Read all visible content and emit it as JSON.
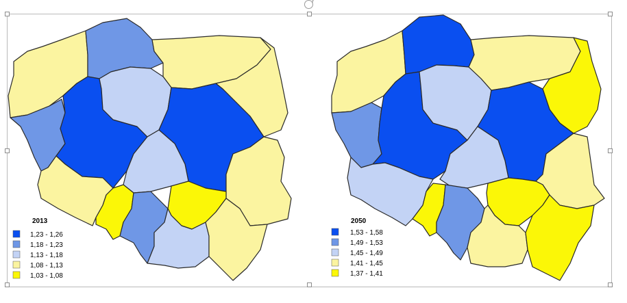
{
  "palette": {
    "dark_blue": "#0a4ff0",
    "mid_blue": "#6f97e6",
    "light_blue": "#c3d3f5",
    "light_yellow": "#fbf4a0",
    "yellow": "#fbf707",
    "border": "#2a2a2a"
  },
  "maps": [
    {
      "legend_title": "2013",
      "legend": [
        {
          "label": "1,23 - 1,26",
          "color": "#0a4ff0"
        },
        {
          "label": "1,18 - 1,23",
          "color": "#6f97e6"
        },
        {
          "label": "1,13 - 1,18",
          "color": "#c3d3f5"
        },
        {
          "label": "1,08 - 1,13",
          "color": "#fbf4a0"
        },
        {
          "label": "1,03 - 1,08",
          "color": "#fbf707"
        }
      ],
      "regions": {
        "zachodniopomorskie": "#fbf4a0",
        "pomorskie": "#6f97e6",
        "warminsko_mazurskie": "#fbf4a0",
        "podlaskie": "#fbf4a0",
        "lubuskie": "#6f97e6",
        "wielkopolskie": "#0a4ff0",
        "kujawsko_pomorskie": "#c3d3f5",
        "mazowieckie": "#0a4ff0",
        "lodzkie": "#c3d3f5",
        "lubelskie": "#fbf4a0",
        "dolnoslaskie": "#fbf4a0",
        "opolskie": "#fbf707",
        "slaskie": "#6f97e6",
        "swietokrzyskie": "#fbf707",
        "malopolskie": "#c3d3f5",
        "podkarpackie": "#fbf4a0"
      }
    },
    {
      "legend_title": "2050",
      "legend": [
        {
          "label": "1,53 - 1,58",
          "color": "#0a4ff0"
        },
        {
          "label": "1,49 - 1,53",
          "color": "#6f97e6"
        },
        {
          "label": "1,45 - 1,49",
          "color": "#c3d3f5"
        },
        {
          "label": "1,41 - 1,45",
          "color": "#fbf4a0"
        },
        {
          "label": "1,37 - 1,41",
          "color": "#fbf707"
        }
      ],
      "regions": {
        "zachodniopomorskie": "#fbf4a0",
        "pomorskie": "#0a4ff0",
        "warminsko_mazurskie": "#fbf4a0",
        "podlaskie": "#fbf707",
        "lubuskie": "#6f97e6",
        "wielkopolskie": "#0a4ff0",
        "kujawsko_pomorskie": "#c3d3f5",
        "mazowieckie": "#0a4ff0",
        "lodzkie": "#c3d3f5",
        "lubelskie": "#fbf4a0",
        "dolnoslaskie": "#c3d3f5",
        "opolskie": "#fbf707",
        "slaskie": "#6f97e6",
        "swietokrzyskie": "#fbf707",
        "malopolskie": "#fbf4a0",
        "podkarpackie": "#fbf707"
      }
    }
  ]
}
